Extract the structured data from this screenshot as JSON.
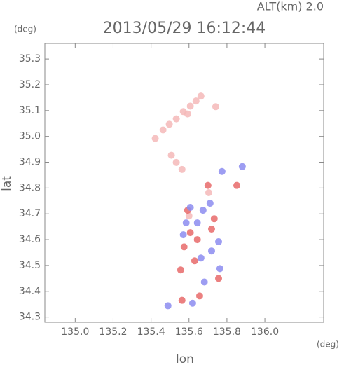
{
  "chart_data": {
    "type": "scatter",
    "title": "2013/05/29 16:12:44",
    "subtitle": "ALT(km) 2.0",
    "y_unit": "(deg)",
    "x_unit": "(deg)",
    "x_label": "lon",
    "y_label": "lat",
    "xlim": [
      134.84,
      136.31
    ],
    "ylim": [
      34.28,
      35.36
    ],
    "xticks": [
      {
        "value": 135.0,
        "label": "135.0"
      },
      135.2,
      135.4,
      135.6,
      135.8,
      {
        "value": 136.0,
        "label": "136.0"
      }
    ],
    "yticks": [
      34.3,
      34.4,
      34.5,
      34.6,
      34.7,
      34.8,
      34.9,
      {
        "value": 35.0,
        "label": "35.0"
      },
      35.1,
      35.2,
      35.3
    ],
    "series": [
      {
        "color": "#f5b9b9",
        "x": [
          135.57,
          135.607,
          135.637,
          135.663,
          135.593,
          135.533,
          135.496,
          135.463,
          135.422,
          135.741,
          135.507,
          135.533,
          135.563,
          135.704,
          135.6
        ],
        "values": [
          35.096,
          35.117,
          35.137,
          35.156,
          35.087,
          35.068,
          35.047,
          35.025,
          34.992,
          35.115,
          34.927,
          34.899,
          34.872,
          34.782,
          34.692
        ]
      },
      {
        "color": "#e86a6a",
        "x": [
          135.563,
          135.656,
          135.607,
          135.719,
          135.574,
          135.63,
          135.756,
          135.733,
          135.644,
          135.556,
          135.593,
          135.7,
          135.852
        ],
        "values": [
          34.365,
          34.382,
          34.627,
          34.641,
          34.572,
          34.518,
          34.45,
          34.681,
          34.6,
          34.483,
          34.714,
          34.81,
          34.81
        ]
      },
      {
        "color": "#8c8cf0",
        "x": [
          135.674,
          135.607,
          135.644,
          135.57,
          135.756,
          135.663,
          135.719,
          135.763,
          135.681,
          135.619,
          135.774,
          135.881,
          135.585,
          135.711,
          135.489
        ],
        "values": [
          34.714,
          34.725,
          34.665,
          34.619,
          34.592,
          34.529,
          34.556,
          34.488,
          34.436,
          34.354,
          34.864,
          34.883,
          34.665,
          34.741,
          34.344
        ]
      }
    ]
  }
}
